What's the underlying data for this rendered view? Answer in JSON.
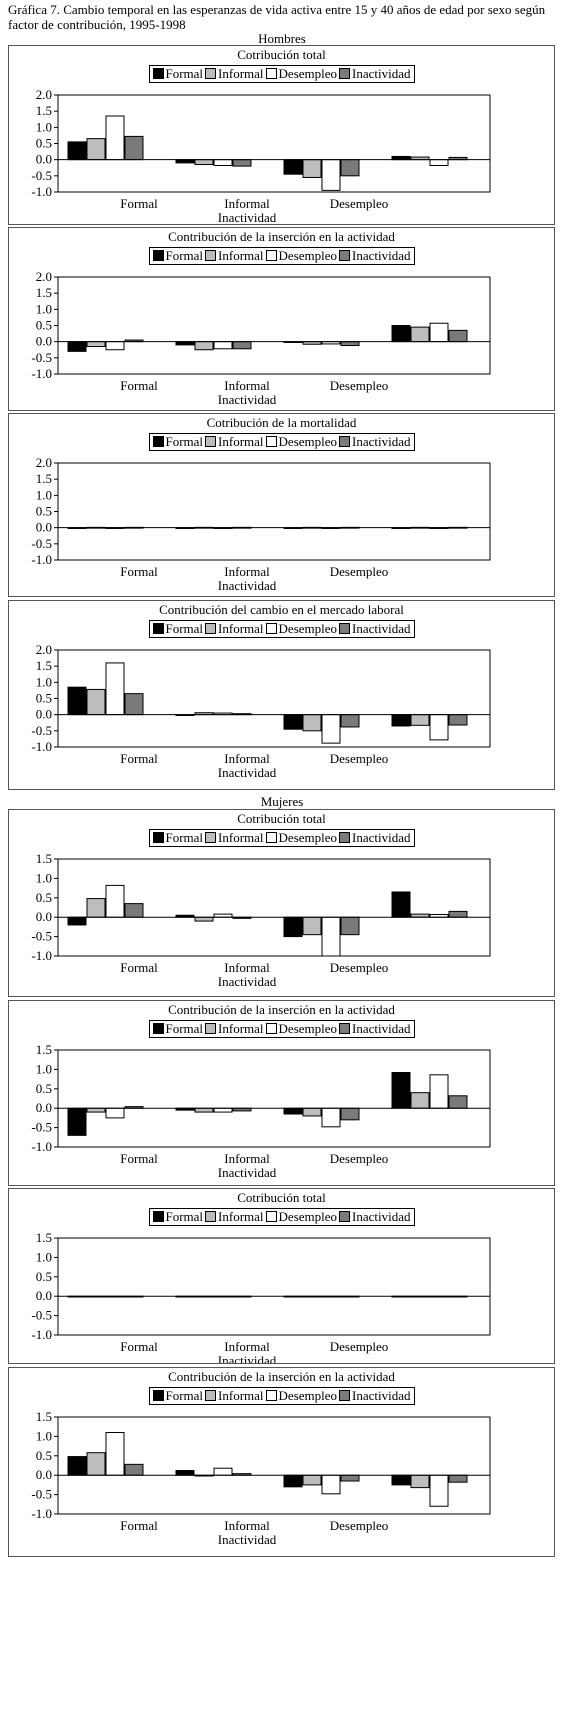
{
  "figure": {
    "title": "Gráfica 7. Cambio temporal en las esperanzas de vida activa entre 15 y 40 años de edad por sexo según factor de contribución, 1995-1998"
  },
  "colors": {
    "Formal": "#000000",
    "Informal": "#bdbdbd",
    "Desempleo": "#ffffff",
    "Inactividad": "#7a7a7a"
  },
  "sections": [
    {
      "label": "Hombres"
    },
    {
      "label": "Mujeres"
    }
  ],
  "chart_data": [
    {
      "type": "bar",
      "section": "Hombres",
      "title": "Cotribución total",
      "categories": [
        "Formal",
        "Informal",
        "Desempleo",
        "Inactividad"
      ],
      "series": [
        {
          "name": "Formal",
          "values": [
            0.55,
            -0.1,
            -0.45,
            0.1
          ]
        },
        {
          "name": "Informal",
          "values": [
            0.65,
            -0.15,
            -0.55,
            0.08
          ]
        },
        {
          "name": "Desempleo",
          "values": [
            1.35,
            -0.18,
            -0.95,
            -0.18
          ]
        },
        {
          "name": "Inactividad",
          "values": [
            0.72,
            -0.2,
            -0.5,
            0.07
          ]
        }
      ],
      "ylim": [
        -1.0,
        2.0
      ],
      "yticks": [
        "2.0",
        "1.5",
        "1.0",
        "0.5",
        "0.0",
        "-0.5",
        "-1.0"
      ],
      "legend": "top"
    },
    {
      "type": "bar",
      "section": "Hombres",
      "title": "Contribución de la inserción en la actividad",
      "categories": [
        "Formal",
        "Informal",
        "Desempleo",
        "Inactividad"
      ],
      "series": [
        {
          "name": "Formal",
          "values": [
            -0.3,
            -0.1,
            -0.02,
            0.5
          ]
        },
        {
          "name": "Informal",
          "values": [
            -0.15,
            -0.25,
            -0.08,
            0.45
          ]
        },
        {
          "name": "Desempleo",
          "values": [
            -0.25,
            -0.22,
            -0.07,
            0.57
          ]
        },
        {
          "name": "Inactividad",
          "values": [
            0.05,
            -0.22,
            -0.12,
            0.35
          ]
        }
      ],
      "ylim": [
        -1.0,
        2.0
      ],
      "yticks": [
        "2.0",
        "1.5",
        "1.0",
        "0.5",
        "0.0",
        "-0.5",
        "-1.0"
      ],
      "legend": "top"
    },
    {
      "type": "bar",
      "section": "Hombres",
      "title": "Cotribución de la mortalidad",
      "categories": [
        "Formal",
        "Informal",
        "Desempleo",
        "Inactividad"
      ],
      "series": [
        {
          "name": "Formal",
          "values": [
            0.0,
            0.0,
            0.0,
            0.0
          ]
        },
        {
          "name": "Informal",
          "values": [
            0.01,
            0.01,
            0.01,
            0.01
          ]
        },
        {
          "name": "Desempleo",
          "values": [
            0.0,
            0.0,
            0.0,
            0.0
          ]
        },
        {
          "name": "Inactividad",
          "values": [
            0.01,
            0.01,
            0.01,
            0.01
          ]
        }
      ],
      "ylim": [
        -1.0,
        2.0
      ],
      "yticks": [
        "2.0",
        "1.5",
        "1.0",
        "0.5",
        "0.0",
        "-0.5",
        "-1.0"
      ],
      "legend": "top"
    },
    {
      "type": "bar",
      "section": "Hombres",
      "title": "Contribución del cambio en el mercado laboral",
      "categories": [
        "Formal",
        "Informal",
        "Desempleo",
        "Inactividad"
      ],
      "series": [
        {
          "name": "Formal",
          "values": [
            0.85,
            0.0,
            -0.45,
            -0.35
          ]
        },
        {
          "name": "Informal",
          "values": [
            0.78,
            0.06,
            -0.5,
            -0.33
          ]
        },
        {
          "name": "Desempleo",
          "values": [
            1.6,
            0.05,
            -0.88,
            -0.78
          ]
        },
        {
          "name": "Inactividad",
          "values": [
            0.65,
            0.03,
            -0.38,
            -0.32
          ]
        }
      ],
      "ylim": [
        -1.0,
        2.0
      ],
      "yticks": [
        "2.0",
        "1.5",
        "1.0",
        "0.5",
        "0.0",
        "-0.5",
        "-1.0"
      ],
      "legend": "top"
    },
    {
      "type": "bar",
      "section": "Mujeres",
      "title": "Cotribución total",
      "categories": [
        "Formal",
        "Informal",
        "Desempleo",
        "Inactividad"
      ],
      "series": [
        {
          "name": "Formal",
          "values": [
            -0.2,
            0.05,
            -0.5,
            0.65
          ]
        },
        {
          "name": "Informal",
          "values": [
            0.48,
            -0.1,
            -0.45,
            0.08
          ]
        },
        {
          "name": "Desempleo",
          "values": [
            0.82,
            0.08,
            -1.0,
            0.07
          ]
        },
        {
          "name": "Inactividad",
          "values": [
            0.35,
            -0.03,
            -0.45,
            0.15
          ]
        }
      ],
      "ylim": [
        -1.0,
        1.5
      ],
      "yticks": [
        "1.5",
        "1.0",
        "0.5",
        "0.0",
        "-0.5",
        "-1.0"
      ],
      "legend": "top"
    },
    {
      "type": "bar",
      "section": "Mujeres",
      "title": "Contribución de la inserción en la actividad",
      "categories": [
        "Formal",
        "Informal",
        "Desempleo",
        "Inactividad"
      ],
      "series": [
        {
          "name": "Formal",
          "values": [
            -0.7,
            -0.05,
            -0.15,
            0.92
          ]
        },
        {
          "name": "Informal",
          "values": [
            -0.1,
            -0.1,
            -0.2,
            0.4
          ]
        },
        {
          "name": "Desempleo",
          "values": [
            -0.25,
            -0.1,
            -0.48,
            0.86
          ]
        },
        {
          "name": "Inactividad",
          "values": [
            0.04,
            -0.07,
            -0.3,
            0.32
          ]
        }
      ],
      "ylim": [
        -1.0,
        1.5
      ],
      "yticks": [
        "1.5",
        "1.0",
        "0.5",
        "0.0",
        "-0.5",
        "-1.0"
      ],
      "legend": "top"
    },
    {
      "type": "bar",
      "section": "Mujeres",
      "title": "Cotribución total",
      "categories": [
        "Formal",
        "Informal",
        "Desempleo",
        "Inactividad"
      ],
      "series": [
        {
          "name": "Formal",
          "values": [
            0,
            0,
            0,
            0
          ]
        },
        {
          "name": "Informal",
          "values": [
            0,
            0,
            0,
            0
          ]
        },
        {
          "name": "Desempleo",
          "values": [
            0,
            0,
            0,
            0
          ]
        },
        {
          "name": "Inactividad",
          "values": [
            0,
            0,
            0,
            0
          ]
        }
      ],
      "ylim": [
        -1.0,
        1.5
      ],
      "yticks": [
        "1.5",
        "1.0",
        "0.5",
        "0.0",
        "-0.5",
        "-1.0"
      ],
      "legend": "top"
    },
    {
      "type": "bar",
      "section": "Mujeres",
      "title": "Contribución de la inserción en la actividad",
      "categories": [
        "Formal",
        "Informal",
        "Desempleo",
        "Inactividad"
      ],
      "series": [
        {
          "name": "Formal",
          "values": [
            0.48,
            0.12,
            -0.3,
            -0.25
          ]
        },
        {
          "name": "Informal",
          "values": [
            0.58,
            0.0,
            -0.25,
            -0.32
          ]
        },
        {
          "name": "Desempleo",
          "values": [
            1.1,
            0.18,
            -0.48,
            -0.8
          ]
        },
        {
          "name": "Inactividad",
          "values": [
            0.28,
            0.04,
            -0.15,
            -0.18
          ]
        }
      ],
      "ylim": [
        -1.0,
        1.5
      ],
      "yticks": [
        "1.5",
        "1.0",
        "0.5",
        "0.0",
        "-0.5",
        "-1.0"
      ],
      "legend": "top"
    }
  ]
}
